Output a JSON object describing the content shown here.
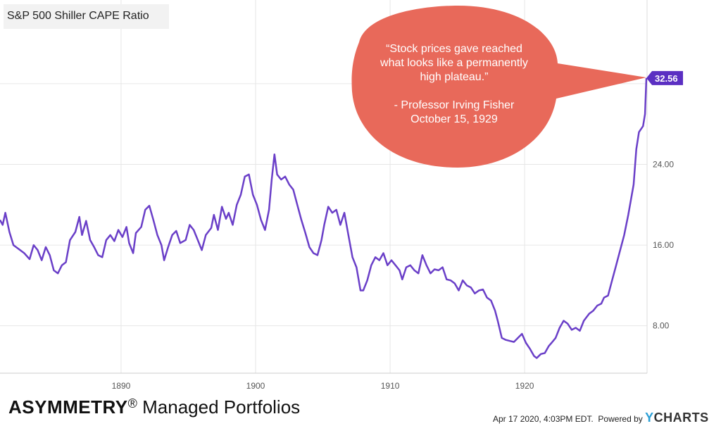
{
  "chart_data": {
    "type": "line",
    "title": "S&P 500 Shiller CAPE Ratio",
    "series": [
      {
        "values_by_year": [
          [
            1881.0,
            18.5
          ],
          [
            1881.2,
            18.0
          ],
          [
            1881.4,
            19.2
          ],
          [
            1881.7,
            17.3
          ],
          [
            1882.0,
            16.0
          ],
          [
            1882.4,
            15.6
          ],
          [
            1882.8,
            15.2
          ],
          [
            1883.2,
            14.6
          ],
          [
            1883.5,
            16.0
          ],
          [
            1883.8,
            15.5
          ],
          [
            1884.1,
            14.5
          ],
          [
            1884.4,
            15.8
          ],
          [
            1884.7,
            15.0
          ],
          [
            1885.0,
            13.5
          ],
          [
            1885.3,
            13.2
          ],
          [
            1885.6,
            14.0
          ],
          [
            1885.9,
            14.3
          ],
          [
            1886.2,
            16.5
          ],
          [
            1886.6,
            17.3
          ],
          [
            1886.9,
            18.8
          ],
          [
            1887.1,
            17.0
          ],
          [
            1887.4,
            18.4
          ],
          [
            1887.7,
            16.5
          ],
          [
            1888.0,
            15.8
          ],
          [
            1888.3,
            15.0
          ],
          [
            1888.6,
            14.8
          ],
          [
            1888.9,
            16.5
          ],
          [
            1889.2,
            17.0
          ],
          [
            1889.5,
            16.4
          ],
          [
            1889.8,
            17.5
          ],
          [
            1890.1,
            16.8
          ],
          [
            1890.4,
            17.8
          ],
          [
            1890.6,
            16.2
          ],
          [
            1890.9,
            15.2
          ],
          [
            1891.1,
            17.2
          ],
          [
            1891.5,
            17.8
          ],
          [
            1891.8,
            19.5
          ],
          [
            1892.1,
            19.9
          ],
          [
            1892.4,
            18.5
          ],
          [
            1892.7,
            17.0
          ],
          [
            1893.0,
            16.0
          ],
          [
            1893.2,
            14.5
          ],
          [
            1893.5,
            15.8
          ],
          [
            1893.8,
            17.0
          ],
          [
            1894.1,
            17.4
          ],
          [
            1894.4,
            16.2
          ],
          [
            1894.8,
            16.5
          ],
          [
            1895.1,
            18.0
          ],
          [
            1895.4,
            17.5
          ],
          [
            1895.7,
            16.5
          ],
          [
            1896.0,
            15.5
          ],
          [
            1896.3,
            17.0
          ],
          [
            1896.7,
            17.7
          ],
          [
            1896.9,
            19.0
          ],
          [
            1897.2,
            17.5
          ],
          [
            1897.5,
            19.8
          ],
          [
            1897.8,
            18.6
          ],
          [
            1898.0,
            19.2
          ],
          [
            1898.3,
            18.0
          ],
          [
            1898.6,
            20.0
          ],
          [
            1898.9,
            21.0
          ],
          [
            1899.2,
            22.8
          ],
          [
            1899.5,
            23.0
          ],
          [
            1899.8,
            21.0
          ],
          [
            1900.1,
            20.0
          ],
          [
            1900.4,
            18.5
          ],
          [
            1900.7,
            17.5
          ],
          [
            1901.0,
            19.5
          ],
          [
            1901.2,
            22.5
          ],
          [
            1901.4,
            25.0
          ],
          [
            1901.6,
            23.0
          ],
          [
            1901.9,
            22.5
          ],
          [
            1902.2,
            22.8
          ],
          [
            1902.5,
            22.0
          ],
          [
            1902.8,
            21.5
          ],
          [
            1903.1,
            20.0
          ],
          [
            1903.4,
            18.5
          ],
          [
            1903.7,
            17.2
          ],
          [
            1904.0,
            15.8
          ],
          [
            1904.3,
            15.2
          ],
          [
            1904.6,
            15.0
          ],
          [
            1904.9,
            16.5
          ],
          [
            1905.1,
            18.0
          ],
          [
            1905.4,
            19.8
          ],
          [
            1905.7,
            19.2
          ],
          [
            1906.0,
            19.5
          ],
          [
            1906.3,
            18.0
          ],
          [
            1906.6,
            19.2
          ],
          [
            1906.9,
            17.0
          ],
          [
            1907.2,
            14.8
          ],
          [
            1907.5,
            13.8
          ],
          [
            1907.8,
            11.5
          ],
          [
            1908.0,
            11.5
          ],
          [
            1908.3,
            12.5
          ],
          [
            1908.6,
            14.0
          ],
          [
            1908.9,
            14.8
          ],
          [
            1909.2,
            14.5
          ],
          [
            1909.5,
            15.2
          ],
          [
            1909.8,
            14.0
          ],
          [
            1910.1,
            14.5
          ],
          [
            1910.4,
            14.0
          ],
          [
            1910.7,
            13.5
          ],
          [
            1910.9,
            12.6
          ],
          [
            1911.2,
            13.8
          ],
          [
            1911.5,
            14.0
          ],
          [
            1911.8,
            13.5
          ],
          [
            1912.1,
            13.2
          ],
          [
            1912.4,
            15.0
          ],
          [
            1912.7,
            14.0
          ],
          [
            1913.0,
            13.2
          ],
          [
            1913.3,
            13.6
          ],
          [
            1913.6,
            13.5
          ],
          [
            1913.9,
            13.8
          ],
          [
            1914.2,
            12.6
          ],
          [
            1914.5,
            12.5
          ],
          [
            1914.8,
            12.2
          ],
          [
            1915.1,
            11.5
          ],
          [
            1915.4,
            12.5
          ],
          [
            1915.7,
            12.0
          ],
          [
            1916.0,
            11.8
          ],
          [
            1916.3,
            11.2
          ],
          [
            1916.6,
            11.5
          ],
          [
            1916.9,
            11.6
          ],
          [
            1917.2,
            10.8
          ],
          [
            1917.5,
            10.5
          ],
          [
            1917.8,
            9.5
          ],
          [
            1918.0,
            8.5
          ],
          [
            1918.3,
            6.8
          ],
          [
            1918.6,
            6.6
          ],
          [
            1918.9,
            6.5
          ],
          [
            1919.2,
            6.4
          ],
          [
            1919.5,
            6.8
          ],
          [
            1919.8,
            7.2
          ],
          [
            1920.1,
            6.3
          ],
          [
            1920.4,
            5.7
          ],
          [
            1920.7,
            5.0
          ],
          [
            1920.9,
            4.8
          ],
          [
            1921.2,
            5.2
          ],
          [
            1921.5,
            5.3
          ],
          [
            1921.8,
            6.0
          ],
          [
            1922.0,
            6.3
          ],
          [
            1922.3,
            6.8
          ],
          [
            1922.6,
            7.8
          ],
          [
            1922.9,
            8.5
          ],
          [
            1923.2,
            8.2
          ],
          [
            1923.5,
            7.6
          ],
          [
            1923.8,
            7.8
          ],
          [
            1924.1,
            7.5
          ],
          [
            1924.4,
            8.5
          ],
          [
            1924.8,
            9.2
          ],
          [
            1925.1,
            9.5
          ],
          [
            1925.4,
            10.0
          ],
          [
            1925.7,
            10.2
          ],
          [
            1925.9,
            10.8
          ],
          [
            1926.2,
            11.0
          ],
          [
            1926.5,
            12.5
          ],
          [
            1926.8,
            14.0
          ],
          [
            1927.1,
            15.5
          ],
          [
            1927.4,
            17.0
          ],
          [
            1927.7,
            19.0
          ],
          [
            1927.9,
            20.5
          ],
          [
            1928.1,
            22.0
          ],
          [
            1928.3,
            25.5
          ],
          [
            1928.5,
            27.2
          ],
          [
            1928.8,
            27.8
          ],
          [
            1928.95,
            29.0
          ],
          [
            1929.05,
            32.56
          ]
        ]
      }
    ],
    "xticks": [
      "1890",
      "1900",
      "1910",
      "1920"
    ],
    "xtick_values": [
      1890,
      1900,
      1910,
      1920
    ],
    "xlim": [
      1881,
      1929.1
    ],
    "yticks": [
      "8.00",
      "16.00",
      "24.00"
    ],
    "ytick_values": [
      8,
      16,
      24
    ],
    "ylim": [
      3.3,
      40.3
    ],
    "last_value_label": "32.56",
    "line_color": "#6a3fc8",
    "grid": true
  },
  "callout": {
    "quote_lines": [
      "“Stock prices gave reached",
      "what looks like a permanently",
      "high plateau.”"
    ],
    "attribution_lines": [
      "- Professor Irving Fisher",
      "October 15, 1929"
    ],
    "bubble_color": "#e8695a"
  },
  "footer": {
    "brand": "ASYMMETRY",
    "reg_mark": "®",
    "brand_rest": " Managed Portfolios",
    "timestamp": "Apr 17 2020, 4:03PM EDT.",
    "powered_by": "Powered by",
    "ycharts_y": "Y",
    "ycharts_rest": "CHARTS"
  }
}
